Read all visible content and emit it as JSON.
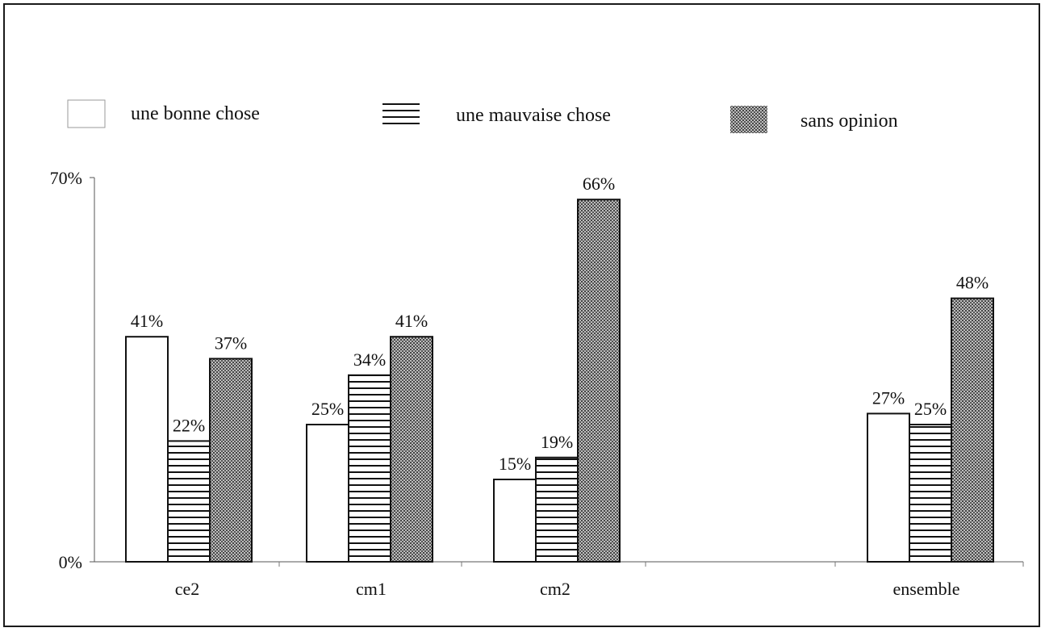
{
  "chart_data": {
    "type": "bar",
    "title": "",
    "xlabel": "",
    "ylabel": "",
    "categories": [
      "ce2",
      "cm1",
      "cm2",
      "ensemble"
    ],
    "ylim": [
      0,
      70
    ],
    "yticks": [
      {
        "value": 0,
        "label": "0%"
      },
      {
        "value": 70,
        "label": "70%"
      }
    ],
    "grid": false,
    "legend_position": "top",
    "series": [
      {
        "name": "une bonne chose",
        "pattern": "white",
        "values": [
          41,
          25,
          15,
          27
        ],
        "labels": [
          "41%",
          "25%",
          "15%",
          "27%"
        ]
      },
      {
        "name": "une mauvaise chose",
        "pattern": "horizontal-stripes",
        "values": [
          22,
          34,
          19,
          25
        ],
        "labels": [
          "22%",
          "34%",
          "19%",
          "25%"
        ]
      },
      {
        "name": "sans opinion",
        "pattern": "dotted-gray",
        "values": [
          37,
          41,
          66,
          48
        ],
        "labels": [
          "37%",
          "41%",
          "66%",
          "48%"
        ]
      }
    ],
    "colors": {
      "stroke": "#111111",
      "background": "#ffffff",
      "stripe": "#111111",
      "dots": "#444444",
      "dot_fill": "#bdbdbd"
    }
  }
}
